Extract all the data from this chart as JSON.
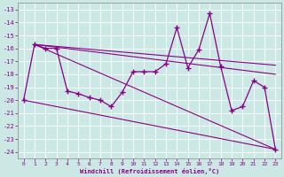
{
  "x": [
    0,
    1,
    2,
    3,
    4,
    5,
    6,
    7,
    8,
    9,
    10,
    11,
    12,
    13,
    14,
    15,
    16,
    17,
    18,
    19,
    20,
    21,
    22,
    23
  ],
  "y_main": [
    -20,
    -15.7,
    -16,
    -16,
    -19.3,
    -19.5,
    -19.8,
    -20,
    -20.5,
    -19.4,
    -17.8,
    -17.8,
    -17.8,
    -17.2,
    -14.4,
    -17.5,
    -16.1,
    -13.3,
    -17.4,
    -20.8,
    -20.5,
    -18.5,
    -19.0,
    -23.8
  ],
  "trend_lines": [
    {
      "x0": 1,
      "y0": -15.7,
      "x1": 23,
      "y1": -23.8
    },
    {
      "x0": 0,
      "y0": -20.0,
      "x1": 23,
      "y1": -23.8
    },
    {
      "x0": 1,
      "y0": -15.7,
      "x1": 23,
      "y1": -17.3
    },
    {
      "x0": 1,
      "y0": -15.7,
      "x1": 23,
      "y1": -18.0
    }
  ],
  "bg_color": "#cce8e4",
  "line_color": "#880088",
  "grid_color": "#aacccc",
  "xlabel": "Windchill (Refroidissement éolien,°C)",
  "ylim": [
    -24.5,
    -12.5
  ],
  "xlim": [
    -0.5,
    23.5
  ],
  "yticks": [
    -24,
    -23,
    -22,
    -21,
    -20,
    -19,
    -18,
    -17,
    -16,
    -15,
    -14,
    -13
  ],
  "xticks": [
    0,
    1,
    2,
    3,
    4,
    5,
    6,
    7,
    8,
    9,
    10,
    11,
    12,
    13,
    14,
    15,
    16,
    17,
    18,
    19,
    20,
    21,
    22,
    23
  ]
}
